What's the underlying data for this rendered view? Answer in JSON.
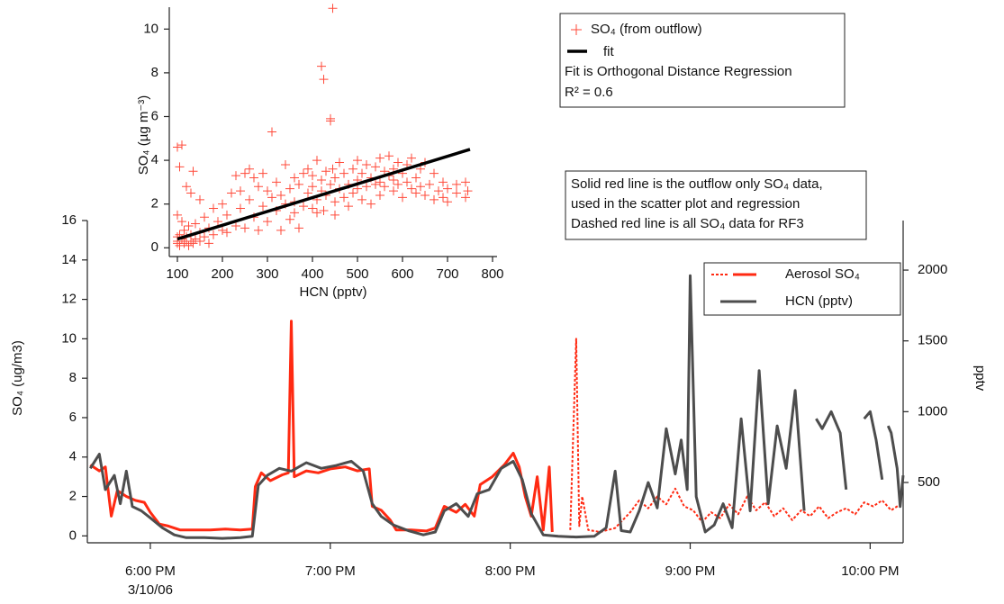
{
  "chart_data": [
    {
      "type": "line",
      "xlim": [
        "17:39",
        "22:11"
      ],
      "xticks": [
        {
          "value": "18:00",
          "label": "6:00 PM"
        },
        {
          "value": "19:00",
          "label": "7:00 PM"
        },
        {
          "value": "20:00",
          "label": "8:00 PM"
        },
        {
          "value": "21:00",
          "label": "9:00 PM"
        },
        {
          "value": "22:00",
          "label": "10:00 PM"
        }
      ],
      "date_label": "3/10/06",
      "ylabel": "SO₄ (ug/m3)",
      "ylim": [
        -0.35,
        16
      ],
      "yticks": [
        0,
        2,
        4,
        6,
        8,
        10,
        12,
        14,
        16
      ],
      "y2label": "pptv",
      "y2lim": [
        74,
        2350
      ],
      "y2ticks": [
        500,
        1000,
        1500,
        2000
      ],
      "legend": "top-right",
      "series": [
        {
          "name": "Aerosol SO₄",
          "color": "#ff2a12",
          "style": "solid",
          "x": [
            "17:40",
            "17:43",
            "17:45",
            "17:47",
            "17:49",
            "17:52",
            "17:55",
            "17:58",
            "18:00",
            "18:03",
            "18:06",
            "18:10",
            "18:15",
            "18:20",
            "18:25",
            "18:30",
            "18:34",
            "18:35",
            "18:37",
            "18:40",
            "18:44",
            "18:46",
            "18:47",
            "18:48",
            "18:52",
            "18:56",
            "19:00",
            "19:05",
            "19:09",
            "19:13",
            "19:14",
            "19:17",
            "19:20",
            "19:22",
            "19:27",
            "19:32",
            "19:35",
            "19:38",
            "19:42",
            "19:45",
            "19:48",
            "19:50",
            "19:54",
            "19:58",
            "20:01",
            "20:03",
            "20:05",
            "20:07",
            "20:09",
            "20:11",
            "20:13",
            "20:14"
          ],
          "values": [
            3.6,
            3.3,
            3.5,
            1.0,
            2.3,
            2.0,
            1.8,
            1.7,
            1.2,
            0.6,
            0.5,
            0.3,
            0.3,
            0.3,
            0.35,
            0.3,
            0.35,
            2.5,
            3.2,
            2.8,
            3.1,
            3.2,
            10.9,
            3.0,
            3.3,
            3.2,
            3.4,
            3.5,
            3.3,
            3.4,
            1.5,
            1.3,
            0.8,
            0.3,
            0.3,
            0.25,
            0.4,
            1.5,
            1.2,
            1.6,
            1.0,
            2.6,
            3.0,
            3.6,
            4.2,
            3.5,
            2.0,
            1.0,
            3.0,
            0.3,
            3.5,
            0.2
          ]
        },
        {
          "color": "#ff2a12",
          "style": "dashed",
          "x": [
            "20:20",
            "20:22",
            "20:23",
            "20:24",
            "20:26",
            "20:30",
            "20:35",
            "20:40",
            "20:43",
            "20:46",
            "20:49",
            "20:52",
            "20:55",
            "20:58",
            "21:01",
            "21:04",
            "21:07",
            "21:10",
            "21:13",
            "21:16",
            "21:19",
            "21:22",
            "21:25",
            "21:28",
            "21:31",
            "21:34",
            "21:37",
            "21:40",
            "21:43",
            "21:46",
            "21:49",
            "21:52",
            "21:55",
            "21:58",
            "22:01",
            "22:04",
            "22:07",
            "22:10"
          ],
          "values": [
            0.3,
            10.0,
            0.5,
            2.0,
            0.3,
            0.2,
            0.4,
            1.2,
            1.8,
            1.4,
            2.0,
            1.6,
            2.4,
            1.5,
            1.3,
            0.7,
            1.2,
            0.9,
            1.6,
            1.1,
            2.0,
            1.3,
            1.7,
            1.0,
            1.4,
            0.8,
            1.3,
            1.0,
            1.5,
            0.9,
            1.2,
            1.4,
            1.1,
            1.7,
            1.5,
            1.8,
            1.3,
            1.6
          ]
        },
        {
          "name": "HCN (pptv)",
          "color": "#4d4d4d",
          "style": "solid",
          "axis": "y2",
          "x": [
            "17:40",
            "17:43",
            "17:45",
            "17:48",
            "17:50",
            "17:52",
            "17:54",
            "17:57",
            "18:00",
            "18:04",
            "18:08",
            "18:12",
            "18:18",
            "18:24",
            "18:30",
            "18:34",
            "18:36",
            "18:39",
            "18:43",
            "18:47",
            "18:52",
            "18:57",
            "19:02",
            "19:07",
            "19:11",
            "19:14",
            "19:17",
            "19:21",
            "19:26",
            "19:31",
            "19:35",
            "19:38",
            "19:42",
            "19:46",
            "19:49",
            "19:53",
            "19:57",
            "20:01",
            "20:04",
            "20:07",
            "20:11",
            "20:16",
            "20:22",
            "20:28",
            "20:32",
            "20:35",
            "20:37",
            "20:40",
            "20:43",
            "20:46",
            "20:49",
            "20:52",
            "20:55",
            "20:57",
            "20:59",
            "21:00",
            "21:02",
            "21:05",
            "21:08",
            "21:11",
            "21:14",
            "21:17",
            "21:20",
            "21:23",
            "21:26",
            "21:29",
            "21:32",
            "21:35",
            "21:38",
            "21:40",
            "21:42",
            "21:44",
            "21:47",
            "21:50",
            "21:52",
            "21:54",
            "21:58",
            "22:00",
            "22:02",
            "22:04",
            "22:05",
            "22:06",
            "22:07",
            "22:09",
            "22:10",
            "22:11"
          ],
          "values": [
            600,
            700,
            450,
            550,
            350,
            580,
            330,
            300,
            250,
            180,
            130,
            110,
            110,
            105,
            110,
            120,
            480,
            550,
            600,
            580,
            640,
            600,
            620,
            650,
            580,
            350,
            260,
            200,
            160,
            130,
            150,
            300,
            350,
            260,
            420,
            450,
            600,
            650,
            520,
            280,
            130,
            120,
            115,
            120,
            180,
            580,
            160,
            150,
            300,
            500,
            320,
            880,
            560,
            800,
            450,
            1960,
            400,
            150,
            200,
            350,
            180,
            950,
            300,
            1290,
            350,
            900,
            600,
            1150,
            300,
            null,
            950,
            880,
            1000,
            850,
            450,
            null,
            950,
            1000,
            800,
            520,
            null,
            900,
            850,
            600,
            330,
            550
          ]
        }
      ],
      "annotations": [
        "Solid red line is the outflow only SO₄ data,",
        "used in the scatter plot and regression",
        "Dashed red line is all SO₄ data for RF3"
      ]
    },
    {
      "type": "scatter",
      "xlabel": "HCN (pptv)",
      "ylabel": "SO₄ (µg m⁻³)",
      "xlim": [
        82,
        810
      ],
      "xticks": [
        100,
        200,
        300,
        400,
        500,
        600,
        700,
        800
      ],
      "ylim": [
        -0.4,
        11.0
      ],
      "yticks": [
        0,
        2,
        4,
        6,
        8,
        10
      ],
      "series": [
        {
          "name": "SO₄ (from outflow)",
          "color": "#ff4a3a",
          "x": [
            100,
            100,
            100,
            100,
            100,
            105,
            105,
            105,
            110,
            110,
            110,
            115,
            115,
            120,
            120,
            120,
            125,
            125,
            130,
            130,
            130,
            135,
            135,
            140,
            140,
            150,
            150,
            150,
            160,
            160,
            170,
            170,
            180,
            180,
            190,
            200,
            200,
            210,
            210,
            220,
            230,
            230,
            240,
            240,
            250,
            250,
            260,
            260,
            270,
            270,
            280,
            280,
            290,
            290,
            300,
            300,
            310,
            310,
            320,
            320,
            330,
            330,
            340,
            340,
            350,
            350,
            360,
            360,
            360,
            370,
            370,
            380,
            380,
            390,
            390,
            400,
            400,
            400,
            410,
            410,
            410,
            420,
            420,
            420,
            425,
            425,
            430,
            430,
            440,
            440,
            440,
            445,
            445,
            450,
            450,
            450,
            460,
            460,
            470,
            470,
            480,
            480,
            490,
            490,
            500,
            500,
            500,
            510,
            510,
            520,
            520,
            530,
            530,
            540,
            540,
            550,
            550,
            550,
            560,
            560,
            570,
            570,
            580,
            580,
            580,
            590,
            590,
            600,
            600,
            610,
            610,
            620,
            620,
            630,
            630,
            640,
            640,
            650,
            650,
            660,
            670,
            670,
            680,
            690,
            690,
            700,
            700,
            720,
            720,
            740,
            740,
            745
          ],
          "values": [
            0.3,
            0.5,
            4.6,
            1.5,
            0.2,
            0.1,
            0.6,
            3.7,
            0.4,
            1.2,
            4.7,
            0.2,
            0.8,
            0.3,
            2.8,
            0.5,
            0.1,
            1.0,
            0.6,
            0.3,
            2.5,
            3.5,
            0.2,
            0.4,
            1.1,
            0.3,
            0.7,
            2.2,
            0.5,
            1.4,
            0.9,
            0.2,
            1.8,
            0.6,
            1.2,
            0.8,
            2.0,
            1.5,
            0.7,
            2.5,
            1.0,
            3.3,
            1.8,
            2.6,
            3.4,
            0.9,
            2.2,
            3.6,
            1.4,
            3.2,
            2.8,
            0.8,
            1.9,
            3.4,
            2.6,
            1.2,
            5.3,
            2.3,
            1.7,
            3.0,
            0.8,
            2.4,
            3.8,
            2.0,
            2.7,
            1.3,
            3.2,
            1.6,
            2.1,
            2.9,
            0.9,
            3.4,
            1.9,
            2.5,
            3.6,
            1.8,
            2.8,
            3.3,
            2.2,
            4.0,
            1.6,
            3.1,
            8.3,
            2.6,
            7.7,
            1.7,
            2.4,
            3.5,
            5.8,
            5.9,
            2.9,
            10.95,
            3.6,
            2.1,
            3.2,
            1.5,
            2.7,
            3.9,
            2.3,
            3.4,
            2.9,
            1.9,
            3.6,
            2.5,
            3.1,
            2.7,
            4.0,
            3.4,
            2.2,
            2.8,
            3.8,
            3.2,
            2.0,
            3.7,
            2.9,
            3.0,
            4.1,
            2.4,
            3.5,
            2.8,
            3.3,
            4.2,
            2.6,
            3.6,
            3.1,
            3.9,
            2.9,
            3.4,
            2.3,
            3.8,
            3.0,
            2.7,
            4.1,
            3.2,
            2.5,
            3.6,
            2.8,
            2.4,
            3.9,
            2.9,
            3.4,
            2.2,
            2.6,
            2.3,
            3.0,
            2.7,
            2.1,
            2.5,
            2.9,
            2.3,
            3.0,
            2.6
          ]
        }
      ],
      "fit": {
        "name": "fit",
        "color": "#000000",
        "x": [
          100,
          750
        ],
        "values": [
          0.4,
          4.5
        ]
      },
      "annotations": [
        "Fit is Orthogonal Distance Regression",
        "R² = 0.6"
      ]
    }
  ]
}
